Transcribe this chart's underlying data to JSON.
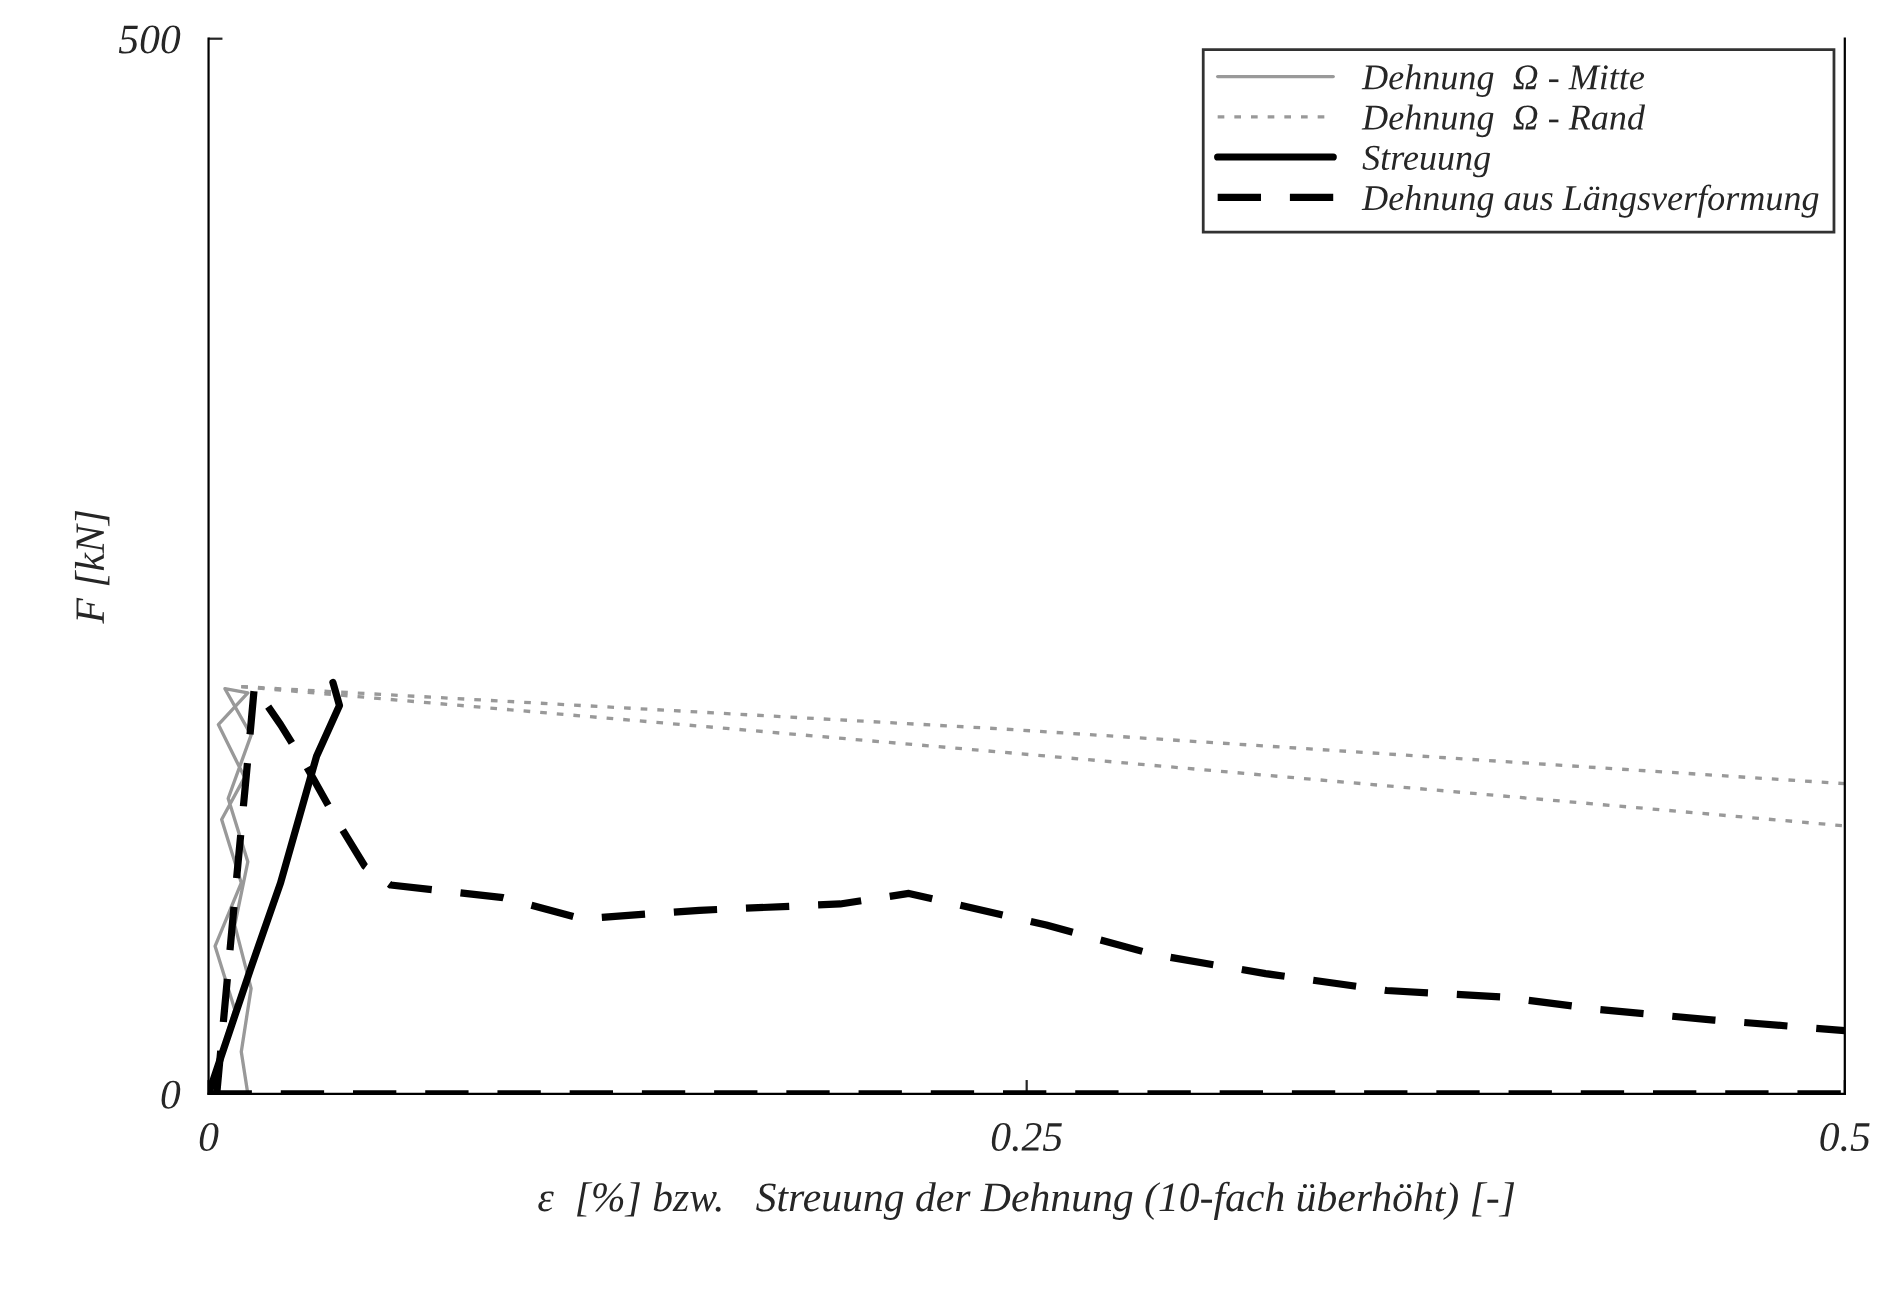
{
  "chart_data": {
    "type": "line",
    "xlabel": "ε  [%] bzw.   Streuung der Dehnung (10-fach überhöht) [-]",
    "ylabel": "F [kN]",
    "xlim": [
      0,
      0.5
    ],
    "ylim": [
      0,
      500
    ],
    "xticks": [
      0,
      0.25,
      0.5
    ],
    "yticks": [
      0,
      500
    ],
    "grid": false,
    "legend": "top right",
    "marker": "none",
    "series": [
      {
        "name": "Dehnung  Ω - Mitte",
        "color": "#999999",
        "line_style": "solid",
        "x": [
          0,
          0.008,
          0.002,
          0.01,
          0.004,
          0.011,
          0.003,
          0.012,
          0.005,
          0.013,
          0.006,
          0.012,
          0.008,
          0.013,
          0.01,
          0.012
        ],
        "values": [
          0,
          40,
          70,
          100,
          130,
          150,
          175,
          190,
          192,
          170,
          140,
          110,
          80,
          50,
          20,
          0
        ]
      },
      {
        "name": "Dehnung  Ω - Rand",
        "color": "#999999",
        "line_style": "dotted",
        "x": [
          0.01,
          0.242,
          0.5
        ],
        "values": [
          193,
          173,
          147
        ]
      },
      {
        "color": "#999999",
        "line_style": "dotted",
        "x": [
          0.01,
          0.242,
          0.5
        ],
        "values": [
          193,
          162,
          127
        ]
      },
      {
        "name": "Streuung",
        "color": "#000000",
        "line_style": "solid",
        "x": [
          0,
          0.013,
          0.022,
          0.033,
          0.04,
          0.038
        ],
        "values": [
          0,
          60,
          100,
          160,
          184,
          195
        ]
      },
      {
        "name": "Dehnung aus Längsverformung",
        "color": "#000000",
        "line_style": "dashed",
        "x": [
          0.0025,
          0.0085,
          0.0116,
          0.014,
          0.022,
          0.03,
          0.039,
          0.0477,
          0.0556,
          0.09,
          0.114,
          0.15,
          0.193,
          0.214,
          0.242,
          0.256,
          0.289,
          0.323,
          0.36,
          0.395,
          0.425,
          0.46,
          0.5
        ],
        "values": [
          0,
          101,
          152,
          193,
          175,
          155,
          130,
          108,
          99,
          93,
          83,
          87,
          90,
          95,
          85,
          80,
          66,
          57,
          49,
          46,
          40,
          35,
          30
        ]
      },
      {
        "color": "#000000",
        "line_style": "dashed",
        "x": [
          0,
          0.5
        ],
        "values": [
          0,
          0
        ]
      }
    ]
  }
}
